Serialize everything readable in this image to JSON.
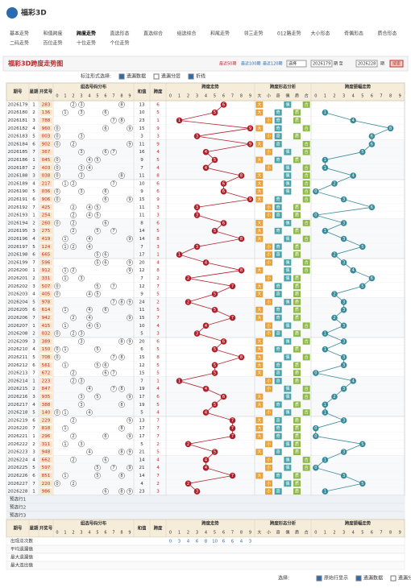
{
  "header": {
    "logo": "福彩3D"
  },
  "nav": [
    [
      "基本走势",
      "和值跨度",
      "跨度走势",
      "直选形态",
      "直选综合",
      "组选综合",
      "和尾走势",
      "邻三走势",
      "012路走势",
      "大小形态",
      "奇偶形态",
      "质合形态"
    ],
    [
      "二码走势",
      "百位走势",
      "十位走势",
      "个位走势"
    ]
  ],
  "nav_active": "跨度走势",
  "title": "福彩3D跨度走势图",
  "filters": {
    "recent": [
      "最近50期",
      "最近100期",
      "最近120期"
    ],
    "select": "选择",
    "from": "2026179",
    "to_label": "期 至",
    "to": "2026228",
    "end_label": "期",
    "search": "搜索"
  },
  "controls": {
    "label": "标注形式选择:",
    "options": [
      {
        "text": "遗漏数据",
        "checked": true
      },
      {
        "text": "遗漏分层",
        "checked": false
      },
      {
        "text": "折线",
        "checked": true
      }
    ]
  },
  "table": {
    "columns": {
      "issue": "期号",
      "week": "星期",
      "draw": "开奖号",
      "group": "组选号码分布",
      "sum": "和值",
      "span": "跨度",
      "span_trend": "跨度走势",
      "span_form": "跨度形态分析",
      "amp": "跨度振幅走势"
    },
    "digits": [
      0,
      1,
      2,
      3,
      4,
      5,
      6,
      7,
      8,
      9
    ],
    "forms": [
      "大",
      "小",
      "奇",
      "偶",
      "质",
      "合"
    ],
    "rows": [
      [
        "2026179",
        1,
        "283",
        13,
        6,
        null
      ],
      [
        "2026180",
        2,
        "136",
        10,
        5,
        1
      ],
      [
        "2026181",
        3,
        "788",
        23,
        1,
        4
      ],
      [
        "2026182",
        4,
        "960",
        15,
        9,
        8
      ],
      [
        "2026183",
        5,
        "003",
        3,
        3,
        6
      ],
      [
        "2026184",
        6,
        "902",
        11,
        9,
        6
      ],
      [
        "2026185",
        7,
        "367",
        16,
        4,
        5
      ],
      [
        "2026186",
        1,
        "045",
        9,
        5,
        1
      ],
      [
        "2026187",
        2,
        "403",
        7,
        4,
        1
      ],
      [
        "2026188",
        3,
        "038",
        11,
        8,
        4
      ],
      [
        "2026189",
        4,
        "217",
        10,
        6,
        2
      ],
      [
        "2026190",
        5,
        "036",
        9,
        6,
        0
      ],
      [
        "2026191",
        6,
        "906",
        15,
        9,
        3
      ],
      [
        "2026192",
        7,
        "425",
        11,
        3,
        6
      ],
      [
        "2026193",
        1,
        "254",
        11,
        3,
        0
      ],
      [
        "2026194",
        2,
        "260",
        8,
        6,
        3
      ],
      [
        "2026195",
        3,
        "275",
        14,
        5,
        1
      ],
      [
        "2026196",
        4,
        "419",
        14,
        8,
        3
      ],
      [
        "2026197",
        5,
        "124",
        7,
        3,
        5
      ],
      [
        "2026198",
        6,
        "665",
        17,
        1,
        2
      ],
      [
        "2026199",
        7,
        "596",
        20,
        4,
        3
      ],
      [
        "2026200",
        1,
        "912",
        12,
        8,
        4
      ],
      [
        "2026201",
        2,
        "331",
        7,
        2,
        6
      ],
      [
        "2026202",
        3,
        "507",
        12,
        7,
        5
      ],
      [
        "2026203",
        4,
        "405",
        9,
        5,
        2
      ],
      [
        "2026204",
        5,
        "978",
        24,
        2,
        3
      ],
      [
        "2026205",
        6,
        "614",
        11,
        5,
        3
      ],
      [
        "2026206",
        7,
        "942",
        15,
        7,
        2
      ],
      [
        "2026207",
        1,
        "415",
        10,
        4,
        3
      ],
      [
        "2026208",
        2,
        "032",
        5,
        3,
        1
      ],
      [
        "2026209",
        3,
        "389",
        20,
        6,
        3
      ],
      [
        "2026210",
        4,
        "150",
        6,
        5,
        1
      ],
      [
        "2026211",
        5,
        "708",
        15,
        8,
        3
      ],
      [
        "2026212",
        6,
        "561",
        12,
        5,
        3
      ],
      [
        "2026213",
        7,
        "672",
        15,
        5,
        0
      ],
      [
        "2026214",
        1,
        "223",
        7,
        1,
        4
      ],
      [
        "2026215",
        2,
        "847",
        19,
        4,
        3
      ],
      [
        "2026216",
        3,
        "935",
        17,
        6,
        2
      ],
      [
        "2026217",
        4,
        "388",
        19,
        5,
        1
      ],
      [
        "2026218",
        5,
        "140",
        5,
        4,
        1
      ],
      [
        "2026219",
        6,
        "229",
        13,
        7,
        3
      ],
      [
        "2026220",
        7,
        "818",
        17,
        7,
        0
      ],
      [
        "2026221",
        1,
        "296",
        17,
        7,
        0
      ],
      [
        "2026222",
        2,
        "311",
        5,
        2,
        5
      ],
      [
        "2026223",
        3,
        "948",
        21,
        5,
        3
      ],
      [
        "2026224",
        4,
        "662",
        14,
        4,
        1
      ],
      [
        "2026225",
        5,
        "597",
        21,
        4,
        0
      ],
      [
        "2026226",
        6,
        "851",
        14,
        7,
        3
      ],
      [
        "2026227",
        7,
        "220",
        4,
        2,
        5
      ],
      [
        "2026228",
        1,
        "986",
        23,
        3,
        1
      ]
    ],
    "preselect": [
      "预选行1",
      "预选行2",
      "预选行3"
    ],
    "stats": {
      "labels": [
        "出现总次数",
        "平均遗漏值",
        "最大遗漏值",
        "最大连出值"
      ],
      "span_counts": [
        0,
        3,
        4,
        6,
        8,
        10,
        6,
        6,
        4,
        3
      ]
    }
  },
  "footer": {
    "label": "选择:",
    "options": [
      {
        "text": "原始行显示",
        "checked": true
      },
      {
        "text": "遗漏数据",
        "checked": true
      },
      {
        "text": "遗漏分层",
        "checked": false
      },
      {
        "text": "折线",
        "checked": true
      }
    ]
  }
}
